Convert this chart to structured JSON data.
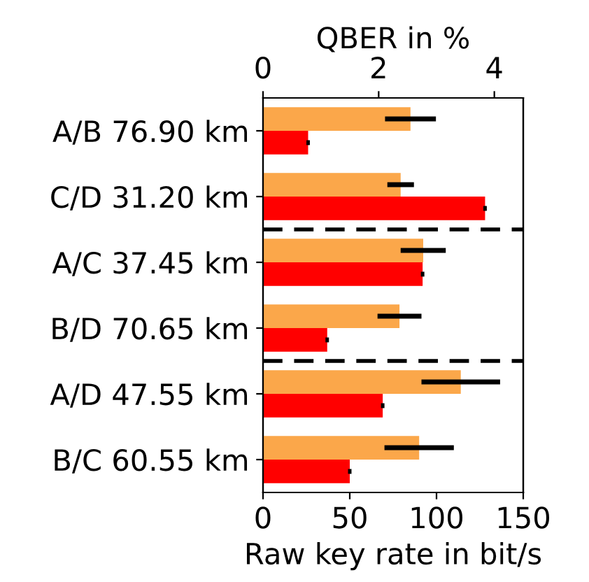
{
  "chart_data": {
    "type": "bar",
    "orientation": "horizontal",
    "categories": [
      "A/B 76.90 km",
      "C/D 31.20 km",
      "A/C 37.45 km",
      "B/D 70.65 km",
      "A/D 47.55 km",
      "B/C 60.55 km"
    ],
    "xlabel": "Raw key rate in bit/s",
    "x2label": "QBER in %",
    "xlim": [
      0,
      150
    ],
    "xticks": [
      0,
      50,
      100,
      150
    ],
    "x2lim": [
      0,
      4.5
    ],
    "x2ticks": [
      0,
      2,
      4
    ],
    "series": [
      {
        "axis": "x2",
        "color": "#fba74a",
        "values": [
          2.55,
          2.38,
          2.77,
          2.36,
          3.42,
          2.7
        ],
        "errors": [
          0.44,
          0.23,
          0.39,
          0.38,
          0.68,
          0.6
        ]
      },
      {
        "color": "#ff0000",
        "values": [
          26,
          128,
          92,
          37,
          69,
          50
        ],
        "errors": [
          1,
          1,
          1,
          1,
          1,
          1
        ]
      }
    ],
    "grid": false,
    "legend": false
  }
}
